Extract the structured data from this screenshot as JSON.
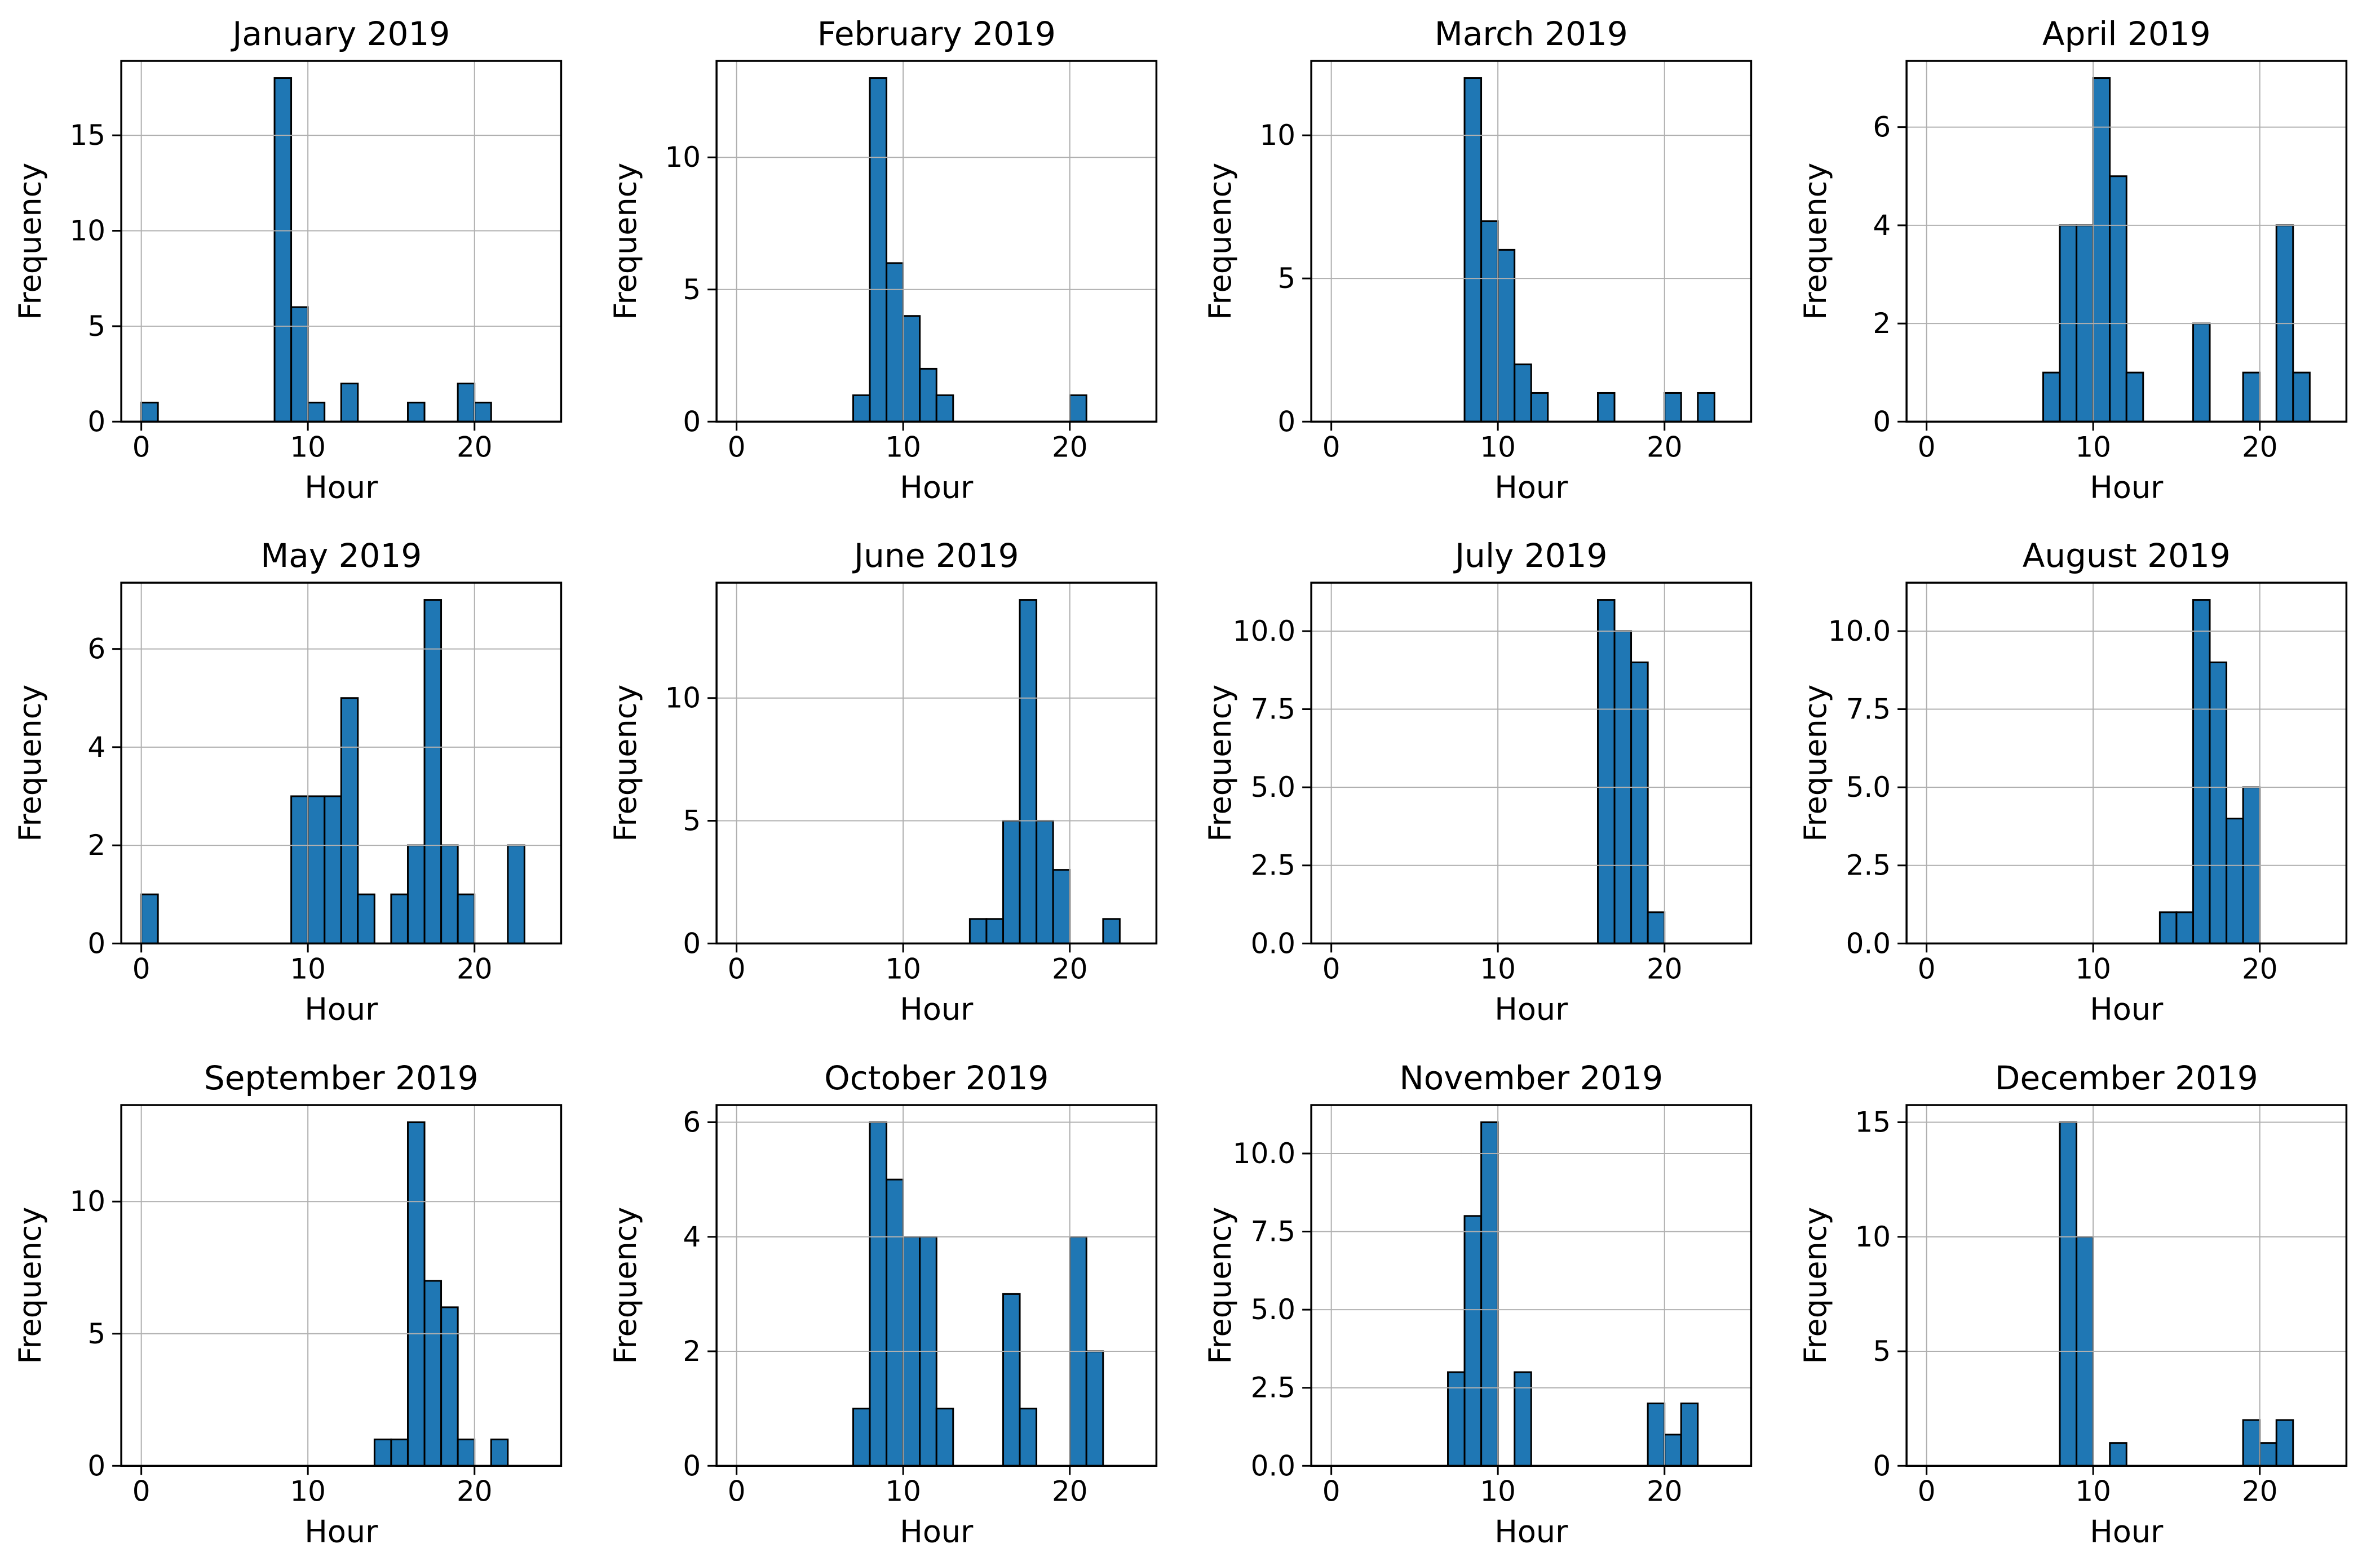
{
  "figure": {
    "background": "#ffffff",
    "layout": {
      "rows": 3,
      "cols": 4,
      "grid": true,
      "legend": false
    }
  },
  "colors": {
    "bar_fill": "#1f77b4",
    "bar_edge": "#000000",
    "grid_line": "#b0b0b0",
    "spine": "#000000",
    "text": "#000000"
  },
  "chart_data": [
    {
      "type": "bar",
      "title": "January 2019",
      "xlabel": "Hour",
      "ylabel": "Frequency",
      "xlim": [
        -1.2,
        25.2
      ],
      "ylim": [
        0,
        18.9
      ],
      "xticks": [
        0,
        10,
        20
      ],
      "yticks": [
        0,
        5,
        10,
        15
      ],
      "ytick_labels": [
        "0",
        "5",
        "10",
        "15"
      ],
      "bin_width": 1,
      "bars": [
        [
          0,
          1
        ],
        [
          8,
          18
        ],
        [
          9,
          6
        ],
        [
          10,
          1
        ],
        [
          12,
          2
        ],
        [
          16,
          1
        ],
        [
          19,
          2
        ],
        [
          20,
          1
        ]
      ]
    },
    {
      "type": "bar",
      "title": "February 2019",
      "xlabel": "Hour",
      "ylabel": "Frequency",
      "xlim": [
        -1.2,
        25.2
      ],
      "ylim": [
        0,
        13.65
      ],
      "xticks": [
        0,
        10,
        20
      ],
      "yticks": [
        0,
        5,
        10
      ],
      "ytick_labels": [
        "0",
        "5",
        "10"
      ],
      "bin_width": 1,
      "bars": [
        [
          7,
          1
        ],
        [
          8,
          13
        ],
        [
          9,
          6
        ],
        [
          10,
          4
        ],
        [
          11,
          2
        ],
        [
          12,
          1
        ],
        [
          20,
          1
        ]
      ]
    },
    {
      "type": "bar",
      "title": "March 2019",
      "xlabel": "Hour",
      "ylabel": "Frequency",
      "xlim": [
        -1.2,
        25.2
      ],
      "ylim": [
        0,
        12.6
      ],
      "xticks": [
        0,
        10,
        20
      ],
      "yticks": [
        0,
        5,
        10
      ],
      "ytick_labels": [
        "0",
        "5",
        "10"
      ],
      "bin_width": 1,
      "bars": [
        [
          8,
          12
        ],
        [
          9,
          7
        ],
        [
          10,
          6
        ],
        [
          11,
          2
        ],
        [
          12,
          1
        ],
        [
          16,
          1
        ],
        [
          20,
          1
        ],
        [
          22,
          1
        ]
      ]
    },
    {
      "type": "bar",
      "title": "April 2019",
      "xlabel": "Hour",
      "ylabel": "Frequency",
      "xlim": [
        -1.2,
        25.2
      ],
      "ylim": [
        0,
        7.35
      ],
      "xticks": [
        0,
        10,
        20
      ],
      "yticks": [
        0,
        2,
        4,
        6
      ],
      "ytick_labels": [
        "0",
        "2",
        "4",
        "6"
      ],
      "bin_width": 1,
      "bars": [
        [
          7,
          1
        ],
        [
          8,
          4
        ],
        [
          9,
          4
        ],
        [
          10,
          7
        ],
        [
          11,
          5
        ],
        [
          12,
          1
        ],
        [
          16,
          2
        ],
        [
          19,
          1
        ],
        [
          21,
          4
        ],
        [
          22,
          1
        ]
      ]
    },
    {
      "type": "bar",
      "title": "May 2019",
      "xlabel": "Hour",
      "ylabel": "Frequency",
      "xlim": [
        -1.2,
        25.2
      ],
      "ylim": [
        0,
        7.35
      ],
      "xticks": [
        0,
        10,
        20
      ],
      "yticks": [
        0,
        2,
        4,
        6
      ],
      "ytick_labels": [
        "0",
        "2",
        "4",
        "6"
      ],
      "bin_width": 1,
      "bars": [
        [
          0,
          1
        ],
        [
          9,
          3
        ],
        [
          10,
          3
        ],
        [
          11,
          3
        ],
        [
          12,
          5
        ],
        [
          13,
          1
        ],
        [
          15,
          1
        ],
        [
          16,
          2
        ],
        [
          17,
          7
        ],
        [
          18,
          2
        ],
        [
          19,
          1
        ],
        [
          22,
          2
        ]
      ]
    },
    {
      "type": "bar",
      "title": "June 2019",
      "xlabel": "Hour",
      "ylabel": "Frequency",
      "xlim": [
        -1.2,
        25.2
      ],
      "ylim": [
        0,
        14.7
      ],
      "xticks": [
        0,
        10,
        20
      ],
      "yticks": [
        0,
        5,
        10
      ],
      "ytick_labels": [
        "0",
        "5",
        "10"
      ],
      "bin_width": 1,
      "bars": [
        [
          14,
          1
        ],
        [
          15,
          1
        ],
        [
          16,
          5
        ],
        [
          17,
          14
        ],
        [
          18,
          5
        ],
        [
          19,
          3
        ],
        [
          22,
          1
        ]
      ]
    },
    {
      "type": "bar",
      "title": "July 2019",
      "xlabel": "Hour",
      "ylabel": "Frequency",
      "xlim": [
        -1.2,
        25.2
      ],
      "ylim": [
        0,
        11.55
      ],
      "xticks": [
        0,
        10,
        20
      ],
      "yticks": [
        0,
        2.5,
        5,
        7.5,
        10
      ],
      "ytick_labels": [
        "0.0",
        "2.5",
        "5.0",
        "7.5",
        "10.0"
      ],
      "bin_width": 1,
      "bars": [
        [
          16,
          11
        ],
        [
          17,
          10
        ],
        [
          18,
          9
        ],
        [
          19,
          1
        ]
      ]
    },
    {
      "type": "bar",
      "title": "August 2019",
      "xlabel": "Hour",
      "ylabel": "Frequency",
      "xlim": [
        -1.2,
        25.2
      ],
      "ylim": [
        0,
        11.55
      ],
      "xticks": [
        0,
        10,
        20
      ],
      "yticks": [
        0,
        2.5,
        5,
        7.5,
        10
      ],
      "ytick_labels": [
        "0.0",
        "2.5",
        "5.0",
        "7.5",
        "10.0"
      ],
      "bin_width": 1,
      "bars": [
        [
          14,
          1
        ],
        [
          15,
          1
        ],
        [
          16,
          11
        ],
        [
          17,
          9
        ],
        [
          18,
          4
        ],
        [
          19,
          5
        ]
      ]
    },
    {
      "type": "bar",
      "title": "September 2019",
      "xlabel": "Hour",
      "ylabel": "Frequency",
      "xlim": [
        -1.2,
        25.2
      ],
      "ylim": [
        0,
        13.65
      ],
      "xticks": [
        0,
        10,
        20
      ],
      "yticks": [
        0,
        5,
        10
      ],
      "ytick_labels": [
        "0",
        "5",
        "10"
      ],
      "bin_width": 1,
      "bars": [
        [
          14,
          1
        ],
        [
          15,
          1
        ],
        [
          16,
          13
        ],
        [
          17,
          7
        ],
        [
          18,
          6
        ],
        [
          19,
          1
        ],
        [
          21,
          1
        ]
      ]
    },
    {
      "type": "bar",
      "title": "October 2019",
      "xlabel": "Hour",
      "ylabel": "Frequency",
      "xlim": [
        -1.2,
        25.2
      ],
      "ylim": [
        0,
        6.3
      ],
      "xticks": [
        0,
        10,
        20
      ],
      "yticks": [
        0,
        2,
        4,
        6
      ],
      "ytick_labels": [
        "0",
        "2",
        "4",
        "6"
      ],
      "bin_width": 1,
      "bars": [
        [
          7,
          1
        ],
        [
          8,
          6
        ],
        [
          9,
          5
        ],
        [
          10,
          4
        ],
        [
          11,
          4
        ],
        [
          12,
          1
        ],
        [
          16,
          3
        ],
        [
          17,
          1
        ],
        [
          20,
          4
        ],
        [
          21,
          2
        ]
      ]
    },
    {
      "type": "bar",
      "title": "November 2019",
      "xlabel": "Hour",
      "ylabel": "Frequency",
      "xlim": [
        -1.2,
        25.2
      ],
      "ylim": [
        0,
        11.55
      ],
      "xticks": [
        0,
        10,
        20
      ],
      "yticks": [
        0,
        2.5,
        5,
        7.5,
        10
      ],
      "ytick_labels": [
        "0.0",
        "2.5",
        "5.0",
        "7.5",
        "10.0"
      ],
      "bin_width": 1,
      "bars": [
        [
          7,
          3
        ],
        [
          8,
          8
        ],
        [
          9,
          11
        ],
        [
          11,
          3
        ],
        [
          19,
          2
        ],
        [
          20,
          1
        ],
        [
          21,
          2
        ]
      ]
    },
    {
      "type": "bar",
      "title": "December 2019",
      "xlabel": "Hour",
      "ylabel": "Frequency",
      "xlim": [
        -1.2,
        25.2
      ],
      "ylim": [
        0,
        15.75
      ],
      "xticks": [
        0,
        10,
        20
      ],
      "yticks": [
        0,
        5,
        10,
        15
      ],
      "ytick_labels": [
        "0",
        "5",
        "10",
        "15"
      ],
      "bin_width": 1,
      "bars": [
        [
          8,
          15
        ],
        [
          9,
          10
        ],
        [
          11,
          1
        ],
        [
          19,
          2
        ],
        [
          20,
          1
        ],
        [
          21,
          2
        ]
      ]
    }
  ]
}
